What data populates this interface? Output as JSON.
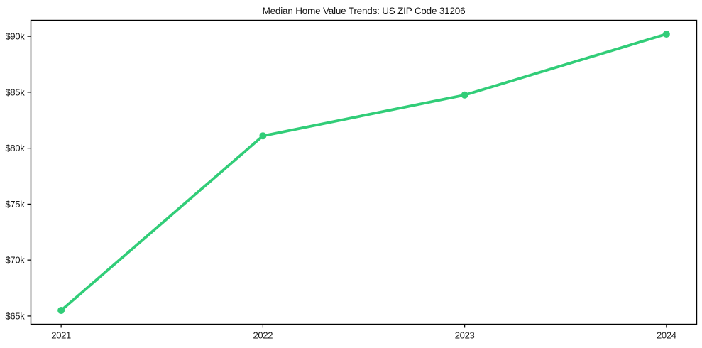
{
  "chart_data": {
    "type": "line",
    "title": "Median Home Value Trends: US ZIP Code 31206",
    "x": [
      2021,
      2022,
      2023,
      2024
    ],
    "x_tick_labels": [
      "2021",
      "2022",
      "2023",
      "2024"
    ],
    "values": [
      65500,
      81100,
      84750,
      90200
    ],
    "series_name": "Median Home Value",
    "y_ticks": [
      65000,
      70000,
      75000,
      80000,
      85000,
      90000
    ],
    "y_tick_labels": [
      "$65k",
      "$70k",
      "$75k",
      "$80k",
      "$85k",
      "$90k"
    ],
    "xlim": [
      2020.85,
      2024.15
    ],
    "ylim": [
      64265,
      91435
    ],
    "grid": false,
    "legend": "none",
    "line_color": "#31cd78",
    "marker": "circle",
    "spine_color": "#000000",
    "tick_label_color": "#1a1a1a",
    "background_color": "#ffffff"
  }
}
